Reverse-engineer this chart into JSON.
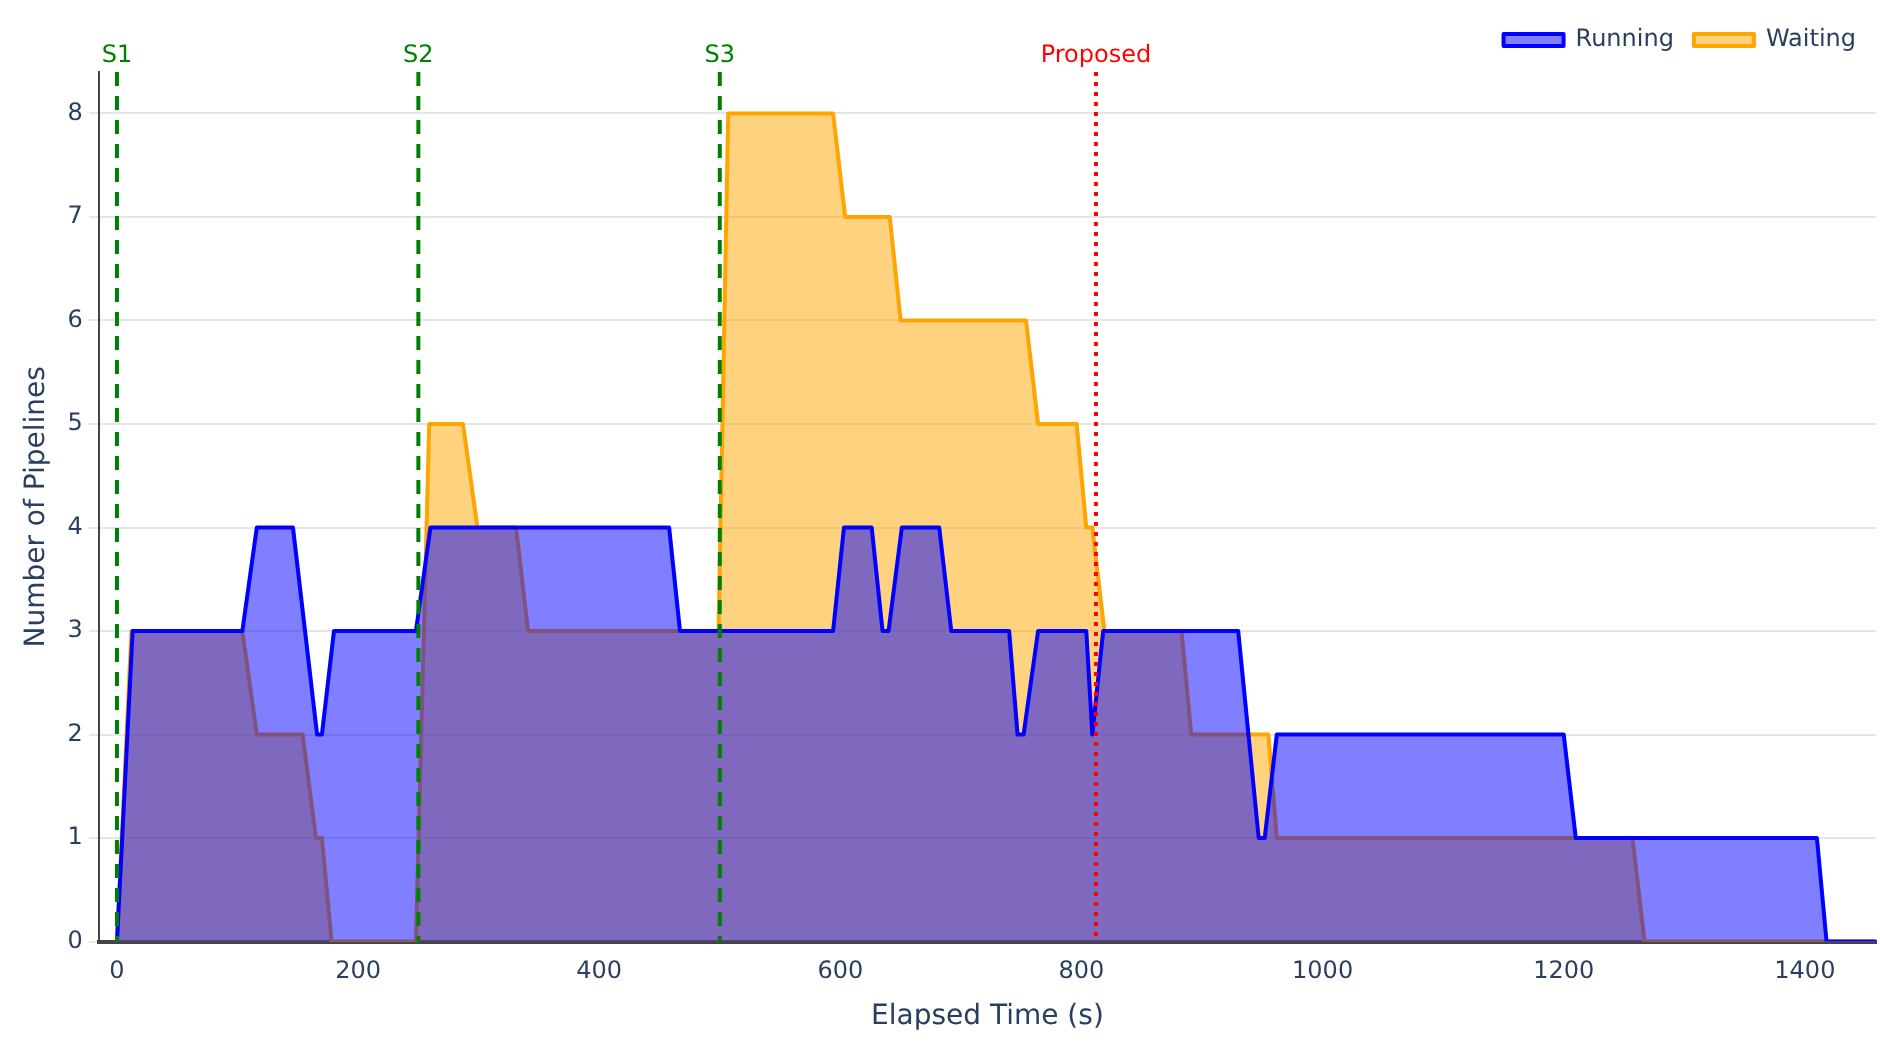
{
  "chart_data": {
    "type": "area",
    "xlabel": "Elapsed Time (s)",
    "ylabel": "Number of Pipelines",
    "xlim": [
      -15,
      1459
    ],
    "xticks": [
      0,
      200,
      400,
      600,
      800,
      1000,
      1200,
      1400
    ],
    "ylim": [
      0,
      8.4
    ],
    "yticks": [
      0,
      1,
      2,
      3,
      4,
      5,
      6,
      7,
      8
    ],
    "grid": "y",
    "legend": "top right",
    "marker": "none",
    "line_style": "solid",
    "series": [
      {
        "name": "Running",
        "color": "#0000ff",
        "x": [
          0,
          13,
          104,
          116,
          146,
          166,
          170,
          180,
          248,
          260,
          458,
          467,
          594,
          603,
          626,
          635,
          640,
          651,
          682,
          692,
          740,
          747,
          752,
          764,
          804,
          809,
          818,
          930,
          947,
          952,
          962,
          1200,
          1210,
          1410,
          1418,
          1459
        ],
        "values": [
          0,
          3,
          3,
          4,
          4,
          2,
          2,
          3,
          3,
          4,
          4,
          3,
          3,
          4,
          4,
          3,
          3,
          4,
          4,
          3,
          3,
          2,
          2,
          3,
          3,
          2,
          3,
          3,
          1,
          1,
          2,
          2,
          1,
          1,
          0,
          0
        ]
      },
      {
        "name": "Waiting",
        "color": "#ffa500",
        "x": [
          0,
          12,
          104,
          116,
          154,
          165,
          170,
          178,
          248,
          259,
          287,
          299,
          331,
          341,
          499,
          507,
          594,
          604,
          641,
          650,
          754,
          764,
          796,
          804,
          809,
          819,
          883,
          891,
          955,
          962,
          1257,
          1267,
          1459
        ],
        "values": [
          0,
          3,
          3,
          2,
          2,
          1,
          1,
          0,
          0,
          5,
          5,
          4,
          4,
          3,
          3,
          8,
          8,
          7,
          7,
          6,
          6,
          5,
          5,
          4,
          4,
          3,
          3,
          2,
          2,
          1,
          1,
          0,
          0
        ]
      }
    ],
    "ref_lines": [
      {
        "axis": "x",
        "value": 0,
        "label": "S1",
        "color": "#008000",
        "line_style": "dashed"
      },
      {
        "axis": "x",
        "value": 250,
        "label": "S2",
        "color": "#008000",
        "line_style": "dashed"
      },
      {
        "axis": "x",
        "value": 500,
        "label": "S3",
        "color": "#008000",
        "line_style": "dashed"
      },
      {
        "axis": "x",
        "value": 812,
        "label": "Proposed",
        "color": "#ff0000",
        "line_style": "dotted"
      }
    ]
  }
}
